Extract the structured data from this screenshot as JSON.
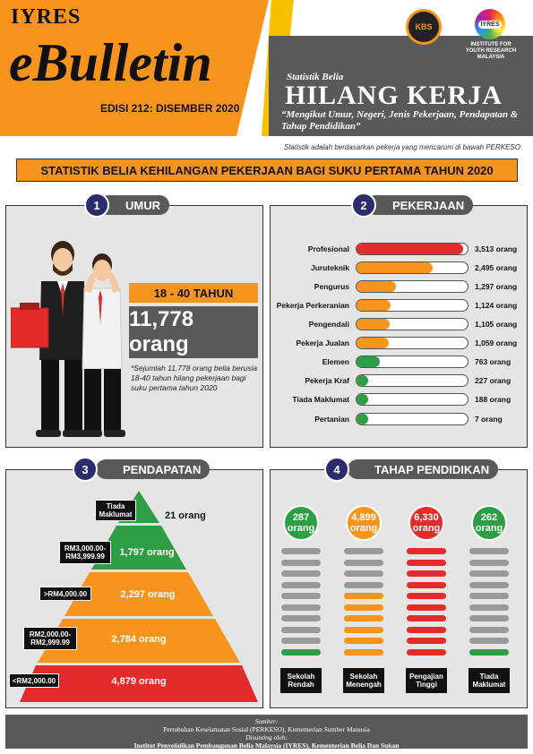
{
  "header": {
    "brand_small": "IYRES",
    "brand_big": "eBulletin",
    "edition": "EDISI 212: DISEMBER 2020",
    "series": "Statistik Belia",
    "headline": "HILANG KERJA",
    "subtitle": "“Mengikut Umur, Negeri, Jenis Pekerjaan, Pendapatan & Tahap Pendidikan”",
    "logo_kbs": "KBS",
    "logo_iyres": "IYRES",
    "logo_iyres_caption": "INSTITUTE FOR YOUTH RESEARCH MALAYSIA",
    "note": "Statistik adalah berdasarkan pekerja yang mencarum di bawah PERKESO"
  },
  "title": "STATISTIK BELIA KEHILANGAN PEKERJAAN BAGI SUKU PERTAMA TAHUN 2020",
  "section1": {
    "num": "1",
    "title": "UMUR",
    "age_range": "18 - 40 TAHUN",
    "count": "11,778 orang",
    "note": "*Sejumlah 11,778 orang belia berusia 18-40 tahun hilang pekerjaan bagi suku pertama tahun 2020"
  },
  "section2": {
    "num": "2",
    "title": "PEKERJAAN",
    "items": [
      {
        "label": "Profesional",
        "value": 3513,
        "value_label": "3,513 orang",
        "color": "#e32b2b"
      },
      {
        "label": "Juruteknik",
        "value": 2495,
        "value_label": "2,495 orang",
        "color": "#f7941d"
      },
      {
        "label": "Pengurus",
        "value": 1297,
        "value_label": "1,297 orang",
        "color": "#f7941d"
      },
      {
        "label": "Pekerja Perkeranian",
        "value": 1124,
        "value_label": "1,124 orang",
        "color": "#f7941d"
      },
      {
        "label": "Pengendali",
        "value": 1105,
        "value_label": "1,105 orang",
        "color": "#f7941d"
      },
      {
        "label": "Pekerja Jualan",
        "value": 1059,
        "value_label": "1,059 orang",
        "color": "#f7941d"
      },
      {
        "label": "Elemen",
        "value": 763,
        "value_label": "763 orang",
        "color": "#2e9e45"
      },
      {
        "label": "Pekerja Kraf",
        "value": 227,
        "value_label": "227 orang",
        "color": "#2e9e45"
      },
      {
        "label": "Tiada Maklumat",
        "value": 188,
        "value_label": "188 orang",
        "color": "#2e9e45"
      },
      {
        "label": "Pertanian",
        "value": 7,
        "value_label": "7 orang",
        "color": "#2e9e45"
      }
    ]
  },
  "section3": {
    "num": "3",
    "title": "PENDAPATAN",
    "tiers": [
      {
        "label": "Tiada Maklumat",
        "value": 21,
        "value_label": "21 orang"
      },
      {
        "label": "RM3,000.00- RM3,999.99",
        "value": 1797,
        "value_label": "1,797 orang"
      },
      {
        "label": ">RM4,000.00",
        "value": 2297,
        "value_label": "2,297 orang"
      },
      {
        "label": "RM2,000.00- RM2,999.99",
        "value": 2784,
        "value_label": "2,784 orang"
      },
      {
        "label": "<RM2,000.00",
        "value": 4879,
        "value_label": "4,879 orang"
      }
    ]
  },
  "section4": {
    "num": "4",
    "title": "TAHAP PENDIDIKAN",
    "groups": [
      {
        "label": "Sekolah Rendah",
        "value": 287,
        "value_label": "287 orang",
        "color": "#2e9e45",
        "filled_bars": 1
      },
      {
        "label": "Sekolah Menengah",
        "value": 4899,
        "value_label": "4,899 orang",
        "color": "#f7941d",
        "filled_bars": 6
      },
      {
        "label": "Pengajian Tinggi",
        "value": 6330,
        "value_label": "6,330 orang",
        "color": "#e32b2b",
        "filled_bars": 10
      },
      {
        "label": "Tiada Maklumat",
        "value": 262,
        "value_label": "262 orang",
        "color": "#2e9e45",
        "filled_bars": 1
      }
    ]
  },
  "footer": {
    "source_label": "Sumber:",
    "source": "Pertubuhan Keselamatan Sosial (PERKESO), Kementerian Sumber Manusia",
    "prepared_label": "Disunting oleh:",
    "prepared": "Institut Penyelidikan Pembangunan Belia Malaysia (IYRES), Kementerian Belia Dan Sukan"
  }
}
